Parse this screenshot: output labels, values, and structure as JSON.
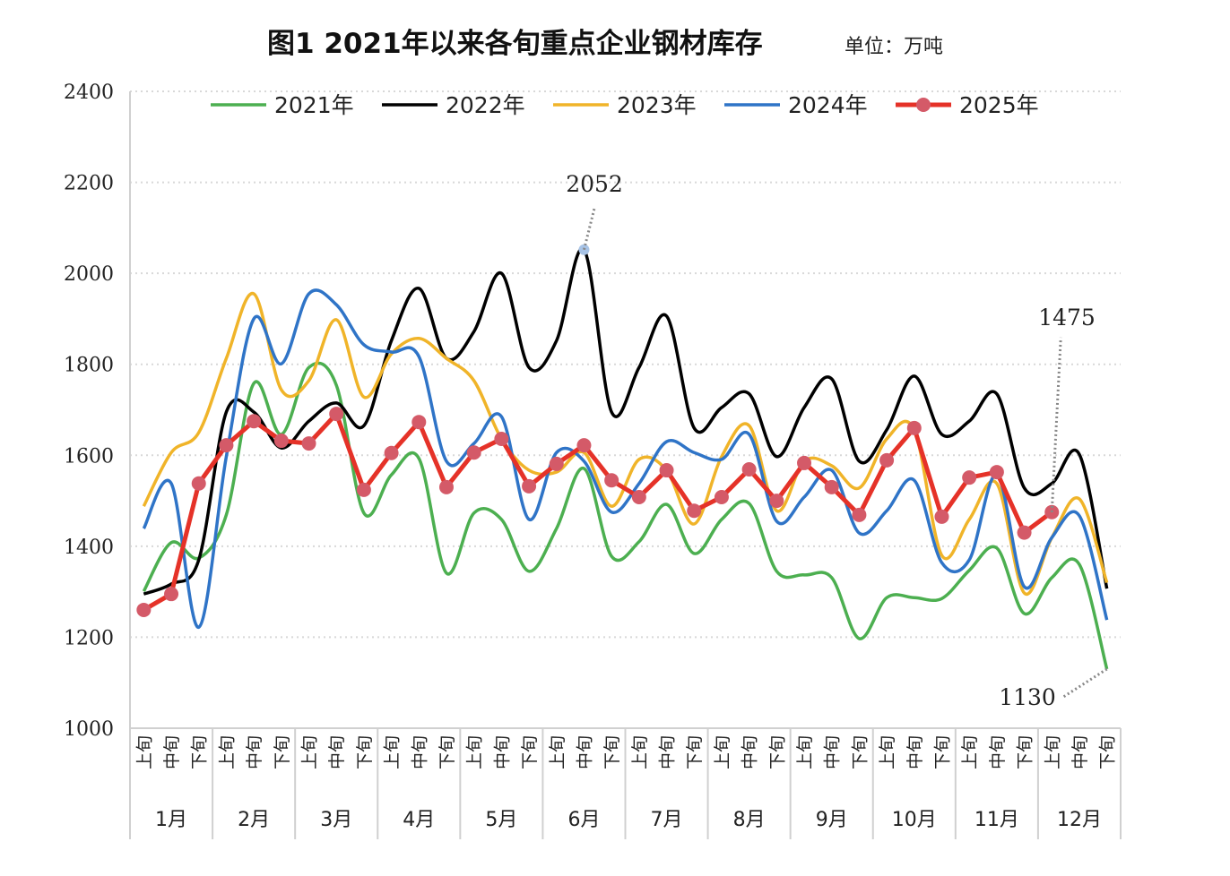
{
  "chart_data": {
    "type": "line",
    "title": "图1  2021年以来各旬重点企业钢材库存",
    "unit": "单位：万吨",
    "ylim": [
      1000,
      2400
    ],
    "yticks": [
      1000,
      1200,
      1400,
      1600,
      1800,
      2000,
      2200,
      2400
    ],
    "grid": true,
    "legend_position": "top",
    "x_sub_labels": [
      "上旬",
      "中旬",
      "下旬"
    ],
    "months": [
      "1月",
      "2月",
      "3月",
      "4月",
      "5月",
      "6月",
      "7月",
      "8月",
      "9月",
      "10月",
      "11月",
      "12月"
    ],
    "series": [
      {
        "name": "2021年",
        "color": "#4caf50",
        "smooth": true,
        "markers": false,
        "values": [
          1301,
          1408,
          1374,
          1469,
          1758,
          1646,
          1793,
          1754,
          1473,
          1557,
          1593,
          1341,
          1473,
          1459,
          1345,
          1439,
          1571,
          1378,
          1410,
          1492,
          1384,
          1459,
          1494,
          1345,
          1337,
          1331,
          1197,
          1287,
          1287,
          1285,
          1347,
          1396,
          1252,
          1331,
          1360,
          1130
        ]
      },
      {
        "name": "2022年",
        "color": "#000000",
        "smooth": true,
        "markers": false,
        "values": [
          1295,
          1317,
          1370,
          1695,
          1695,
          1616,
          1675,
          1715,
          1665,
          1852,
          1967,
          1813,
          1872,
          2000,
          1793,
          1852,
          2052,
          1695,
          1793,
          1906,
          1660,
          1705,
          1735,
          1597,
          1705,
          1768,
          1587,
          1656,
          1774,
          1646,
          1675,
          1735,
          1528,
          1538,
          1602,
          1307
        ]
      },
      {
        "name": "2023年",
        "color": "#f0b429",
        "smooth": true,
        "markers": false,
        "values": [
          1488,
          1606,
          1650,
          1813,
          1955,
          1744,
          1764,
          1898,
          1728,
          1823,
          1857,
          1813,
          1764,
          1636,
          1567,
          1563,
          1606,
          1488,
          1591,
          1567,
          1449,
          1597,
          1665,
          1478,
          1587,
          1577,
          1528,
          1636,
          1656,
          1380,
          1459,
          1538,
          1297,
          1419,
          1504,
          1320
        ]
      },
      {
        "name": "2024年",
        "color": "#2f74c7",
        "smooth": true,
        "markers": false,
        "values": [
          1439,
          1538,
          1222,
          1597,
          1900,
          1801,
          1955,
          1931,
          1843,
          1827,
          1817,
          1587,
          1626,
          1685,
          1459,
          1606,
          1587,
          1475,
          1538,
          1630,
          1606,
          1591,
          1646,
          1455,
          1508,
          1567,
          1429,
          1478,
          1545,
          1364,
          1370,
          1557,
          1311,
          1419,
          1467,
          1238
        ]
      },
      {
        "name": "2025年",
        "color": "#e53228",
        "marker_color": "#d45a68",
        "smooth": false,
        "markers": true,
        "values": [
          1260,
          1295,
          1538,
          1622,
          1675,
          1632,
          1626,
          1691,
          1524,
          1605,
          1673,
          1530,
          1606,
          1636,
          1532,
          1581,
          1622,
          1545,
          1508,
          1567,
          1478,
          1508,
          1569,
          1500,
          1583,
          1530,
          1469,
          1589,
          1660,
          1465,
          1551,
          1563,
          1430,
          1475
        ]
      }
    ],
    "annotations": [
      {
        "label": "2052",
        "series": "2022年",
        "index": 16
      },
      {
        "label": "1475",
        "series": "2025年",
        "index": 33
      },
      {
        "label": "1130",
        "series": "2021年",
        "index": 35
      }
    ]
  }
}
